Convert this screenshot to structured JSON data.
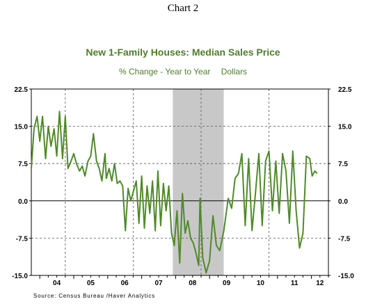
{
  "page_title": "Chart 2",
  "source": "Source:  Census Bureau /Haver Analytics",
  "chart_data": {
    "type": "line",
    "title": "New 1-Family Houses: Median Sales Price",
    "subtitle_left": "% Change - Year to Year",
    "subtitle_right": "Dollars",
    "xlabel": "",
    "ylabel": "",
    "x_start": 2003.75,
    "x_end": 2012.5,
    "ylim": [
      -15.0,
      22.5
    ],
    "y_ticks": [
      22.5,
      15.0,
      7.5,
      0.0,
      -7.5,
      -15.0
    ],
    "y_tick_labels": [
      "22.5",
      "15.0",
      "7.5",
      "0.0",
      "-7.5",
      "-15.0"
    ],
    "x_tick_labels": [
      "04",
      "05",
      "06",
      "07",
      "08",
      "09",
      "10",
      "11",
      "12"
    ],
    "vertical_gridlines_years": [
      2004.75,
      2006.75,
      2008.75,
      2010.75
    ],
    "recession_shading": {
      "start": 2007.917,
      "end": 2009.417
    },
    "grid": true,
    "line_color": "#4f8a2a",
    "recession_color": "#c8c8c8",
    "series": [
      {
        "values": [
          [
            2003.75,
            6.5
          ],
          [
            2003.83,
            14.5
          ],
          [
            2003.92,
            17.0
          ],
          [
            2004.0,
            12.0
          ],
          [
            2004.08,
            17.0
          ],
          [
            2004.17,
            8.5
          ],
          [
            2004.25,
            15.0
          ],
          [
            2004.33,
            11.0
          ],
          [
            2004.42,
            14.5
          ],
          [
            2004.5,
            9.0
          ],
          [
            2004.58,
            18.0
          ],
          [
            2004.67,
            8.5
          ],
          [
            2004.75,
            17.0
          ],
          [
            2004.83,
            6.5
          ],
          [
            2004.92,
            8.0
          ],
          [
            2005.0,
            9.5
          ],
          [
            2005.08,
            7.5
          ],
          [
            2005.17,
            6.0
          ],
          [
            2005.25,
            7.0
          ],
          [
            2005.33,
            5.0
          ],
          [
            2005.42,
            8.0
          ],
          [
            2005.5,
            9.0
          ],
          [
            2005.58,
            13.5
          ],
          [
            2005.67,
            8.0
          ],
          [
            2005.75,
            6.5
          ],
          [
            2005.83,
            4.0
          ],
          [
            2005.92,
            9.5
          ],
          [
            2005.96,
            4.5
          ],
          [
            2006.04,
            6.5
          ],
          [
            2006.12,
            4.0
          ],
          [
            2006.2,
            7.5
          ],
          [
            2006.28,
            3.5
          ],
          [
            2006.36,
            4.0
          ],
          [
            2006.44,
            3.0
          ],
          [
            2006.52,
            -6.0
          ],
          [
            2006.6,
            2.5
          ],
          [
            2006.68,
            0.0
          ],
          [
            2006.76,
            2.0
          ],
          [
            2006.84,
            4.0
          ],
          [
            2006.92,
            -4.5
          ],
          [
            2007.0,
            5.0
          ],
          [
            2007.08,
            -5.5
          ],
          [
            2007.16,
            3.0
          ],
          [
            2007.24,
            -2.5
          ],
          [
            2007.32,
            4.0
          ],
          [
            2007.4,
            -6.0
          ],
          [
            2007.48,
            6.0
          ],
          [
            2007.56,
            -5.0
          ],
          [
            2007.64,
            3.5
          ],
          [
            2007.72,
            -2.0
          ],
          [
            2007.8,
            3.0
          ],
          [
            2007.88,
            -6.5
          ],
          [
            2007.96,
            -9.0
          ],
          [
            2008.04,
            -2.0
          ],
          [
            2008.12,
            -12.5
          ],
          [
            2008.2,
            1.5
          ],
          [
            2008.28,
            -6.5
          ],
          [
            2008.36,
            -4.0
          ],
          [
            2008.44,
            -7.5
          ],
          [
            2008.52,
            -8.5
          ],
          [
            2008.6,
            -10.5
          ],
          [
            2008.68,
            -13.0
          ],
          [
            2008.72,
            0.5
          ],
          [
            2008.8,
            -11.5
          ],
          [
            2008.9,
            -14.5
          ],
          [
            2009.0,
            -12.0
          ],
          [
            2009.1,
            -3.0
          ],
          [
            2009.2,
            -9.0
          ],
          [
            2009.3,
            -10.0
          ],
          [
            2009.42,
            -6.0
          ],
          [
            2009.55,
            0.5
          ],
          [
            2009.65,
            -1.5
          ],
          [
            2009.75,
            4.5
          ],
          [
            2009.85,
            5.5
          ],
          [
            2009.95,
            9.5
          ],
          [
            2010.05,
            -5.0
          ],
          [
            2010.15,
            8.5
          ],
          [
            2010.25,
            -6.0
          ],
          [
            2010.35,
            1.5
          ],
          [
            2010.45,
            9.5
          ],
          [
            2010.55,
            -5.0
          ],
          [
            2010.65,
            8.0
          ],
          [
            2010.75,
            10.0
          ],
          [
            2010.85,
            -2.0
          ],
          [
            2010.95,
            8.0
          ],
          [
            2011.05,
            -2.5
          ],
          [
            2011.15,
            9.5
          ],
          [
            2011.25,
            6.0
          ],
          [
            2011.35,
            -4.5
          ],
          [
            2011.45,
            10.0
          ],
          [
            2011.55,
            -2.0
          ],
          [
            2011.65,
            -9.5
          ],
          [
            2011.75,
            -6.5
          ],
          [
            2011.85,
            9.0
          ],
          [
            2011.95,
            8.5
          ],
          [
            2012.02,
            5.0
          ],
          [
            2012.1,
            6.0
          ],
          [
            2012.17,
            5.5
          ]
        ]
      }
    ]
  }
}
